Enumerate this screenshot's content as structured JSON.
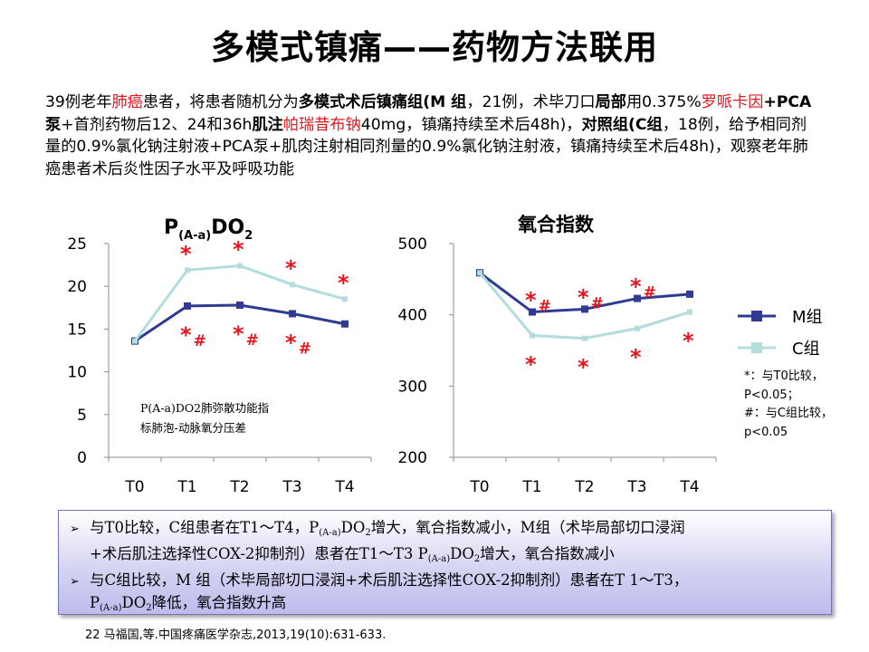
{
  "slide": {
    "title": "多模式镇痛——药物方法联用",
    "intro": {
      "p1": "39例老年",
      "p2": "肺癌",
      "p3": "患者，将患者随机分为",
      "p4": "多模式术后镇痛组(M 组",
      "p5": "，21例，术毕刀口",
      "p6": "局部",
      "p7": "用0.375%",
      "p8": "罗哌卡因",
      "p9": "+PCA泵",
      "p10": "+首剂药物后12、24和36h",
      "p11": "肌注",
      "p12": "帕瑞昔布钠",
      "p13": "40mg，镇痛持续至术后48h)，",
      "p14": "对照组(C组",
      "p15": "，18例，给予相同剂量的0.9%氯化钠注射液+PCA泵+肌肉注射相同剂量的0.9%氯化钠注射液，镇痛持续至术后48h)，观察老年肺癌患者术后炎性因子水平及呼吸功能"
    },
    "summary": {
      "line1_a": "与T0比较，C组患者在T1～T4，P",
      "line1_sub": "(A-a)",
      "line1_b": "DO",
      "line1_sub2": "2",
      "line1_c": "增大，氧合指数减小，M组（术毕局部切口浸润",
      "line2_a": "+术后肌注选择性COX-2抑制剂）患者在T1～T3 P",
      "line2_sub": "(A-a)",
      "line2_b": "DO",
      "line2_sub2": "2",
      "line2_c": "增大，氧合指数减小",
      "line3": "与C组比较，M 组（术毕局部切口浸润+术后肌注选择性COX-2抑制剂）患者在T 1～T3，",
      "line4_a": "P",
      "line4_sub": "(A-a)",
      "line4_b": "DO",
      "line4_sub2": "2",
      "line4_c": "降低，氧合指数升高"
    },
    "citation": "22 马福国,等.中国疼痛医学杂志,2013,19(10):631-633.",
    "legend_note": [
      "*：与T0比较，",
      "P<0.05；",
      "#：与C组比较，",
      "p<0.05"
    ]
  },
  "colors": {
    "m_series": "#2f3b92",
    "c_series": "#b3dcdc",
    "marker_red": "#e8141b"
  },
  "chart_data": [
    {
      "type": "line",
      "title_main": "P",
      "title_sub": "(A-a)",
      "title_tail": "DO",
      "title_sub2": "2",
      "categories": [
        "T0",
        "T1",
        "T2",
        "T3",
        "T4"
      ],
      "ylim": [
        0,
        25
      ],
      "yticks": [
        0,
        5,
        10,
        15,
        20,
        25
      ],
      "grid": false,
      "annotation": [
        "P(A-a)DO2肺弥散功能指",
        "标肺泡-动脉氧分压差"
      ],
      "series": [
        {
          "name": "M组",
          "values": [
            13.6,
            17.7,
            17.8,
            16.8,
            15.6
          ],
          "marks": [
            "",
            "*#",
            "*#",
            "*#",
            ""
          ]
        },
        {
          "name": "C组",
          "values": [
            13.6,
            21.9,
            22.4,
            20.2,
            18.5
          ],
          "marks": [
            "",
            "*",
            "*",
            "*",
            "*"
          ]
        }
      ]
    },
    {
      "type": "line",
      "title": "氧合指数",
      "categories": [
        "T0",
        "T1",
        "T2",
        "T3",
        "T4"
      ],
      "ylim": [
        200,
        500
      ],
      "yticks": [
        200,
        300,
        400,
        500
      ],
      "grid": false,
      "legend": "right",
      "series": [
        {
          "name": "M组",
          "values": [
            459,
            404,
            408,
            423,
            429
          ],
          "marks": [
            "",
            "*#",
            "*#",
            "*#",
            ""
          ]
        },
        {
          "name": "C组",
          "values": [
            459,
            371,
            367,
            381,
            404
          ],
          "marks": [
            "",
            "*",
            "*",
            "*",
            "*"
          ]
        }
      ]
    }
  ]
}
